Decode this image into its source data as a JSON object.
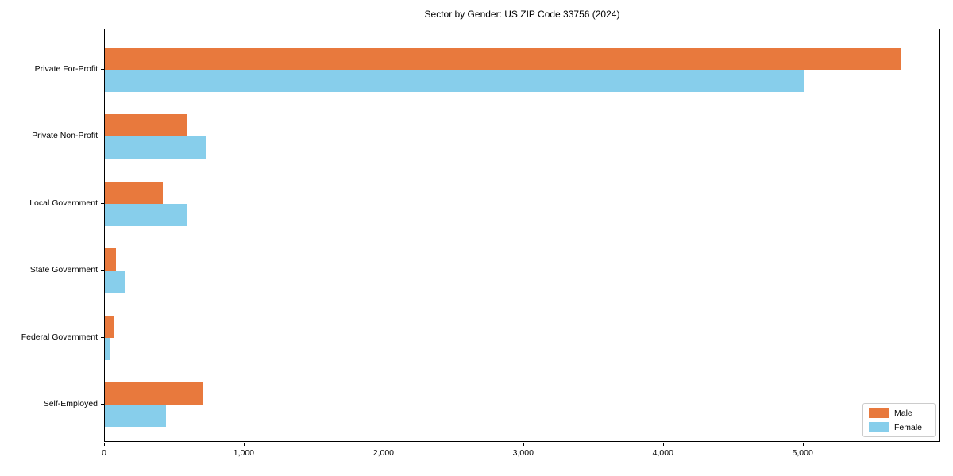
{
  "chart_data": {
    "type": "bar",
    "orientation": "horizontal",
    "title": "Sector by Gender: US ZIP Code 33756 (2024)",
    "categories": [
      "Private For-Profit",
      "Private Non-Profit",
      "Local Government",
      "State Government",
      "Federal Government",
      "Self-Employed"
    ],
    "series": [
      {
        "name": "Male",
        "color": "#E8793D",
        "values": [
          5700,
          590,
          415,
          80,
          60,
          705
        ]
      },
      {
        "name": "Female",
        "color": "#87CEEB",
        "values": [
          5000,
          725,
          590,
          140,
          40,
          435
        ]
      }
    ],
    "xlabel": "",
    "ylabel": "",
    "xlim": [
      0,
      5985
    ],
    "xticks": [
      0,
      1000,
      2000,
      3000,
      4000,
      5000
    ],
    "xtick_labels": [
      "0",
      "1,000",
      "2,000",
      "3,000",
      "4,000",
      "5,000"
    ],
    "grid": false,
    "legend": {
      "position": "lower right",
      "labels": [
        "Male",
        "Female"
      ]
    }
  }
}
